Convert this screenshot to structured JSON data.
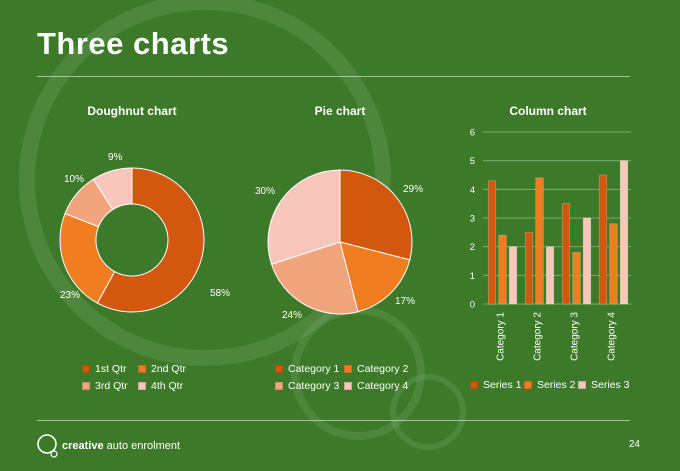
{
  "slide": {
    "title": "Three charts",
    "page_number": "24"
  },
  "brand": {
    "word1": "creative",
    "word2": "auto enrolment"
  },
  "colors": {
    "background": "#3c7a29",
    "accent": "#d2580f"
  },
  "chart_data": [
    {
      "type": "doughnut",
      "title": "Doughnut chart",
      "categories": [
        "1st Qtr",
        "2nd Qtr",
        "3rd Qtr",
        "4th Qtr"
      ],
      "values": [
        58,
        23,
        10,
        9
      ],
      "data_labels": [
        "58%",
        "23%",
        "10%",
        "9%"
      ],
      "colors": [
        "#d2580f",
        "#f07d20",
        "#f2a47d",
        "#f6c7ba"
      ],
      "legend": "bottom"
    },
    {
      "type": "pie",
      "title": "Pie chart",
      "categories": [
        "Category 1",
        "Category 2",
        "Category 3",
        "Category 4"
      ],
      "values": [
        29,
        17,
        24,
        30
      ],
      "data_labels": [
        "29%",
        "17%",
        "24%",
        "30%"
      ],
      "colors": [
        "#d2580f",
        "#f07d20",
        "#f2a47d",
        "#f6c7ba"
      ],
      "legend": "bottom"
    },
    {
      "type": "bar",
      "title": "Column chart",
      "categories": [
        "Category 1",
        "Category 2",
        "Category 3",
        "Category 4"
      ],
      "series": [
        {
          "name": "Series 1",
          "values": [
            4.3,
            2.5,
            3.5,
            4.5
          ],
          "color": "#d2580f"
        },
        {
          "name": "Series 2",
          "values": [
            2.4,
            4.4,
            1.8,
            2.8
          ],
          "color": "#f07d20"
        },
        {
          "name": "Series 3",
          "values": [
            2.0,
            2.0,
            3.0,
            5.0
          ],
          "color": "#f6c7ba"
        }
      ],
      "ylim": [
        0,
        6
      ],
      "yticks": [
        "0",
        "1",
        "2",
        "3",
        "4",
        "5",
        "6"
      ],
      "grid": true,
      "legend": "bottom"
    }
  ]
}
